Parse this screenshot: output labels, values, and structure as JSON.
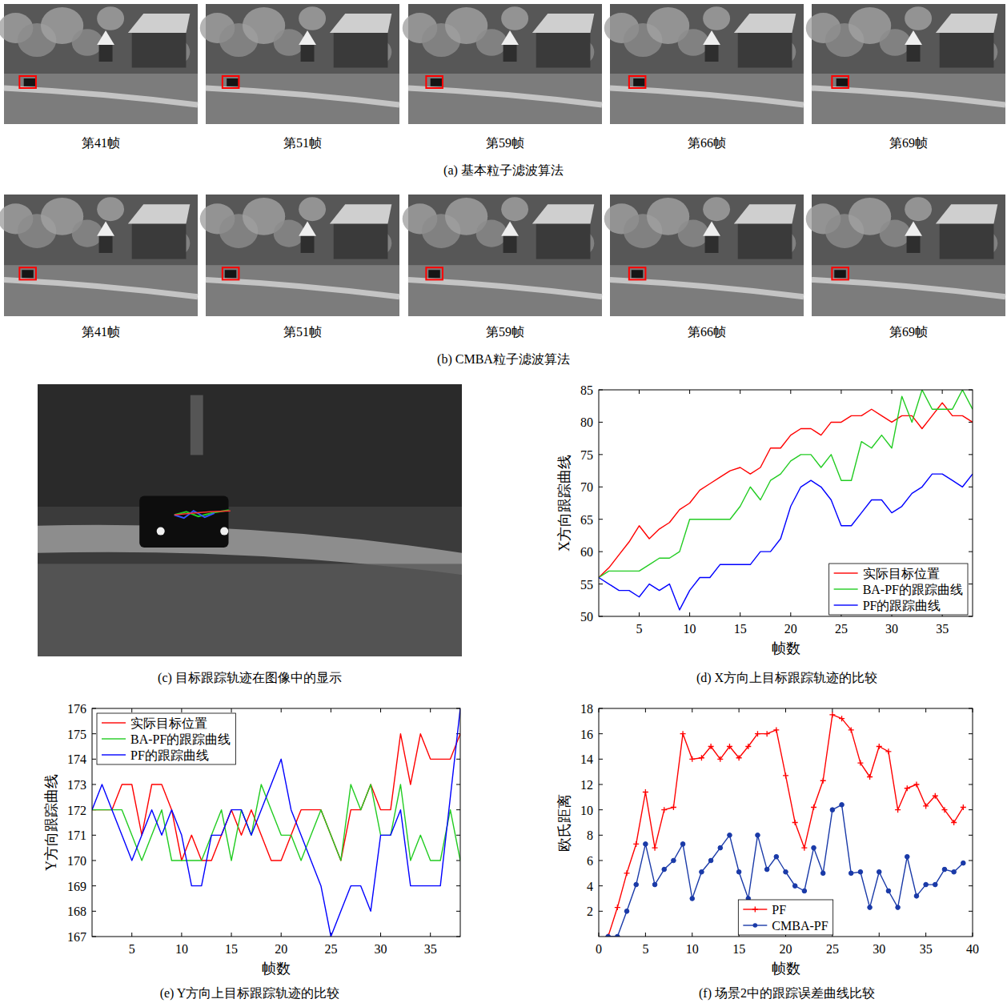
{
  "image_rows": [
    {
      "caption": "(a) 基本粒子滤波算法",
      "frames": [
        "第41帧",
        "第51帧",
        "第59帧",
        "第66帧",
        "第69帧"
      ]
    },
    {
      "caption": "(b) CMBA粒子滤波算法",
      "frames": [
        "第41帧",
        "第51帧",
        "第59帧",
        "第66帧",
        "第69帧"
      ]
    }
  ],
  "image_c": {
    "caption": "(c) 目标跟踪轨迹在图像中的显示"
  },
  "chart_data": [
    {
      "type": "line",
      "title": "(d) X方向上目标跟踪轨迹的比较",
      "xlabel": "帧数",
      "ylabel": "X方向跟踪曲线",
      "x": [
        1,
        2,
        3,
        4,
        5,
        6,
        7,
        8,
        9,
        10,
        11,
        12,
        13,
        14,
        15,
        16,
        17,
        18,
        19,
        20,
        21,
        22,
        23,
        24,
        25,
        26,
        27,
        28,
        29,
        30,
        31,
        32,
        33,
        34,
        35,
        36,
        37,
        38
      ],
      "series": [
        {
          "name": "实际目标位置",
          "color": "#ff0000",
          "line_style": "solid",
          "values": [
            56,
            57.5,
            59.5,
            61.5,
            64,
            62,
            63.5,
            64.5,
            66.5,
            67.5,
            69.5,
            70.5,
            71.5,
            72.5,
            73,
            72,
            73,
            76,
            76,
            78,
            79,
            79,
            78,
            80,
            80,
            81,
            81,
            82,
            81,
            80,
            81,
            81,
            79,
            81,
            83,
            81,
            81,
            80
          ]
        },
        {
          "name": "BA-PF的跟踪曲线",
          "color": "#22cc22",
          "line_style": "solid",
          "values": [
            56,
            57,
            57,
            57,
            57,
            58,
            59,
            59,
            60,
            65,
            65,
            65,
            65,
            65,
            67,
            70,
            68,
            71,
            72,
            74,
            75,
            75,
            73,
            75,
            71,
            71,
            77,
            76,
            78,
            76,
            84,
            80,
            85,
            82,
            82,
            82,
            85,
            82
          ]
        },
        {
          "name": "PF的跟踪曲线",
          "color": "#0000ff",
          "line_style": "solid",
          "values": [
            56,
            55,
            54,
            54,
            53,
            55,
            54,
            55,
            51,
            54,
            56,
            56,
            58,
            58,
            58,
            58,
            60,
            60,
            62,
            67,
            70,
            71,
            70,
            68,
            64,
            64,
            66,
            68,
            68,
            66,
            67,
            69,
            70,
            72,
            72,
            71,
            70,
            72
          ]
        }
      ],
      "xlim": [
        1,
        38
      ],
      "xticks": [
        5,
        10,
        15,
        20,
        25,
        30,
        35
      ],
      "ylim": [
        50,
        85
      ],
      "yticks": [
        50,
        55,
        60,
        65,
        70,
        75,
        80,
        85
      ],
      "grid": false,
      "legend": "lower right"
    },
    {
      "type": "line",
      "title": "(e) Y方向上目标跟踪轨迹的比较",
      "xlabel": "帧数",
      "ylabel": "Y方向跟踪曲线",
      "x": [
        1,
        2,
        3,
        4,
        5,
        6,
        7,
        8,
        9,
        10,
        11,
        12,
        13,
        14,
        15,
        16,
        17,
        18,
        19,
        20,
        21,
        22,
        23,
        24,
        25,
        26,
        27,
        28,
        29,
        30,
        31,
        32,
        33,
        34,
        35,
        36,
        37,
        38
      ],
      "series": [
        {
          "name": "实际目标位置",
          "color": "#ff0000",
          "line_style": "solid",
          "values": [
            172,
            172,
            172,
            173,
            173,
            171,
            173,
            173,
            172,
            170,
            171,
            170,
            170,
            171,
            172,
            171,
            172,
            171,
            170,
            170,
            171,
            172,
            172,
            172,
            171,
            170,
            172,
            172,
            173,
            172,
            172,
            175,
            173,
            175,
            174,
            174,
            174,
            175
          ]
        },
        {
          "name": "BA-PF的跟踪曲线",
          "color": "#22cc22",
          "line_style": "solid",
          "values": [
            172,
            172,
            172,
            172,
            171,
            170,
            171,
            172,
            170,
            170,
            170,
            170,
            171,
            172,
            170,
            172,
            171,
            173,
            172,
            171,
            171,
            170,
            171,
            172,
            171,
            170,
            173,
            172,
            173,
            171,
            171,
            173,
            170,
            171,
            170,
            170,
            172,
            170
          ]
        },
        {
          "name": "PF的跟踪曲线",
          "color": "#0000ff",
          "line_style": "solid",
          "values": [
            172,
            173,
            172,
            171,
            170,
            171,
            172,
            171,
            172,
            171,
            169,
            169,
            171,
            171,
            172,
            172,
            171,
            172,
            173,
            174,
            172,
            171,
            170,
            169,
            167,
            168,
            169,
            169,
            168,
            171,
            171,
            172,
            169,
            169,
            169,
            169,
            172.5,
            176
          ]
        }
      ],
      "xlim": [
        1,
        38
      ],
      "xticks": [
        5,
        10,
        15,
        20,
        25,
        30,
        35
      ],
      "ylim": [
        167,
        176
      ],
      "yticks": [
        167,
        168,
        169,
        170,
        171,
        172,
        173,
        174,
        175,
        176
      ],
      "grid": false,
      "legend": "upper left"
    },
    {
      "type": "line",
      "title": "(f) 场景2中的跟踪误差曲线比较",
      "xlabel": "帧数",
      "ylabel": "欧氏距离",
      "x": [
        1,
        2,
        3,
        4,
        5,
        6,
        7,
        8,
        9,
        10,
        11,
        12,
        13,
        14,
        15,
        16,
        17,
        18,
        19,
        20,
        21,
        22,
        23,
        24,
        25,
        26,
        27,
        28,
        29,
        30,
        31,
        32,
        33,
        34,
        35,
        36,
        37,
        38,
        39
      ],
      "series": [
        {
          "name": "PF",
          "color": "#ff0000",
          "marker": "plus",
          "line_style": "solid",
          "values": [
            0,
            2.3,
            5,
            7.3,
            11.4,
            7,
            10,
            10.2,
            16,
            14,
            14.1,
            15,
            14,
            15,
            14.1,
            15,
            16,
            16,
            16.3,
            12.7,
            9,
            7,
            10.2,
            12.3,
            17.5,
            17.2,
            16.3,
            13.7,
            12.6,
            15,
            14.6,
            10,
            11.7,
            12,
            10.3,
            11.1,
            10,
            9,
            10.2
          ]
        },
        {
          "name": "CMBA-PF",
          "color": "#1a3aa8",
          "marker": "circle",
          "line_style": "solid",
          "values": [
            0,
            0,
            2,
            4.1,
            7.3,
            4.1,
            5.3,
            6,
            7.3,
            3,
            5.1,
            6,
            7,
            8,
            5.1,
            3,
            8,
            5.3,
            6.3,
            5.1,
            4,
            3.6,
            7,
            5,
            10,
            10.4,
            5,
            5.1,
            2.3,
            5.1,
            3.6,
            2.3,
            6.3,
            3.2,
            4.1,
            4.1,
            5.3,
            5.1,
            5.8
          ]
        }
      ],
      "xlim": [
        0,
        40
      ],
      "xticks": [
        0,
        5,
        10,
        15,
        20,
        25,
        30,
        35,
        40
      ],
      "ylim": [
        0,
        18
      ],
      "yticks": [
        2,
        4,
        6,
        8,
        10,
        12,
        14,
        16,
        18
      ],
      "grid": false,
      "legend": "lower center"
    }
  ]
}
